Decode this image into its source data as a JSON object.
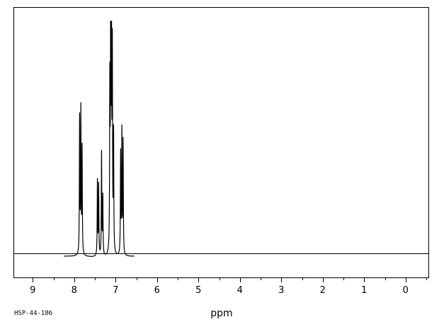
{
  "chart_data": {
    "type": "line",
    "title": "",
    "xlabel": "ppm",
    "ylabel": "",
    "xlim": [
      9.45,
      -0.55
    ],
    "ylim": [
      -0.09,
      1.06
    ],
    "x_reversed": true,
    "grid": false,
    "tick_labels": [
      "9",
      "8",
      "7",
      "6",
      "5",
      "4",
      "3",
      "2",
      "1",
      "0"
    ],
    "ticks_major": [
      9,
      8,
      7,
      6,
      5,
      4,
      3,
      2,
      1,
      0
    ],
    "baseline_range": [
      8.25,
      6.55
    ],
    "peaks": [
      {
        "ppm": 7.87,
        "intensity": 0.58
      },
      {
        "ppm": 7.84,
        "intensity": 0.61
      },
      {
        "ppm": 7.81,
        "intensity": 0.45
      },
      {
        "ppm": 7.44,
        "intensity": 0.32
      },
      {
        "ppm": 7.41,
        "intensity": 0.3
      },
      {
        "ppm": 7.34,
        "intensity": 0.44
      },
      {
        "ppm": 7.31,
        "intensity": 0.25
      },
      {
        "ppm": 7.14,
        "intensity": 0.7
      },
      {
        "ppm": 7.12,
        "intensity": 1.0
      },
      {
        "ppm": 7.1,
        "intensity": 0.92
      },
      {
        "ppm": 7.08,
        "intensity": 0.83
      },
      {
        "ppm": 7.05,
        "intensity": 0.5
      },
      {
        "ppm": 6.88,
        "intensity": 0.43
      },
      {
        "ppm": 6.85,
        "intensity": 0.52
      },
      {
        "ppm": 6.82,
        "intensity": 0.48
      }
    ]
  },
  "footer": {
    "sample_code": "HSP-44-186"
  }
}
